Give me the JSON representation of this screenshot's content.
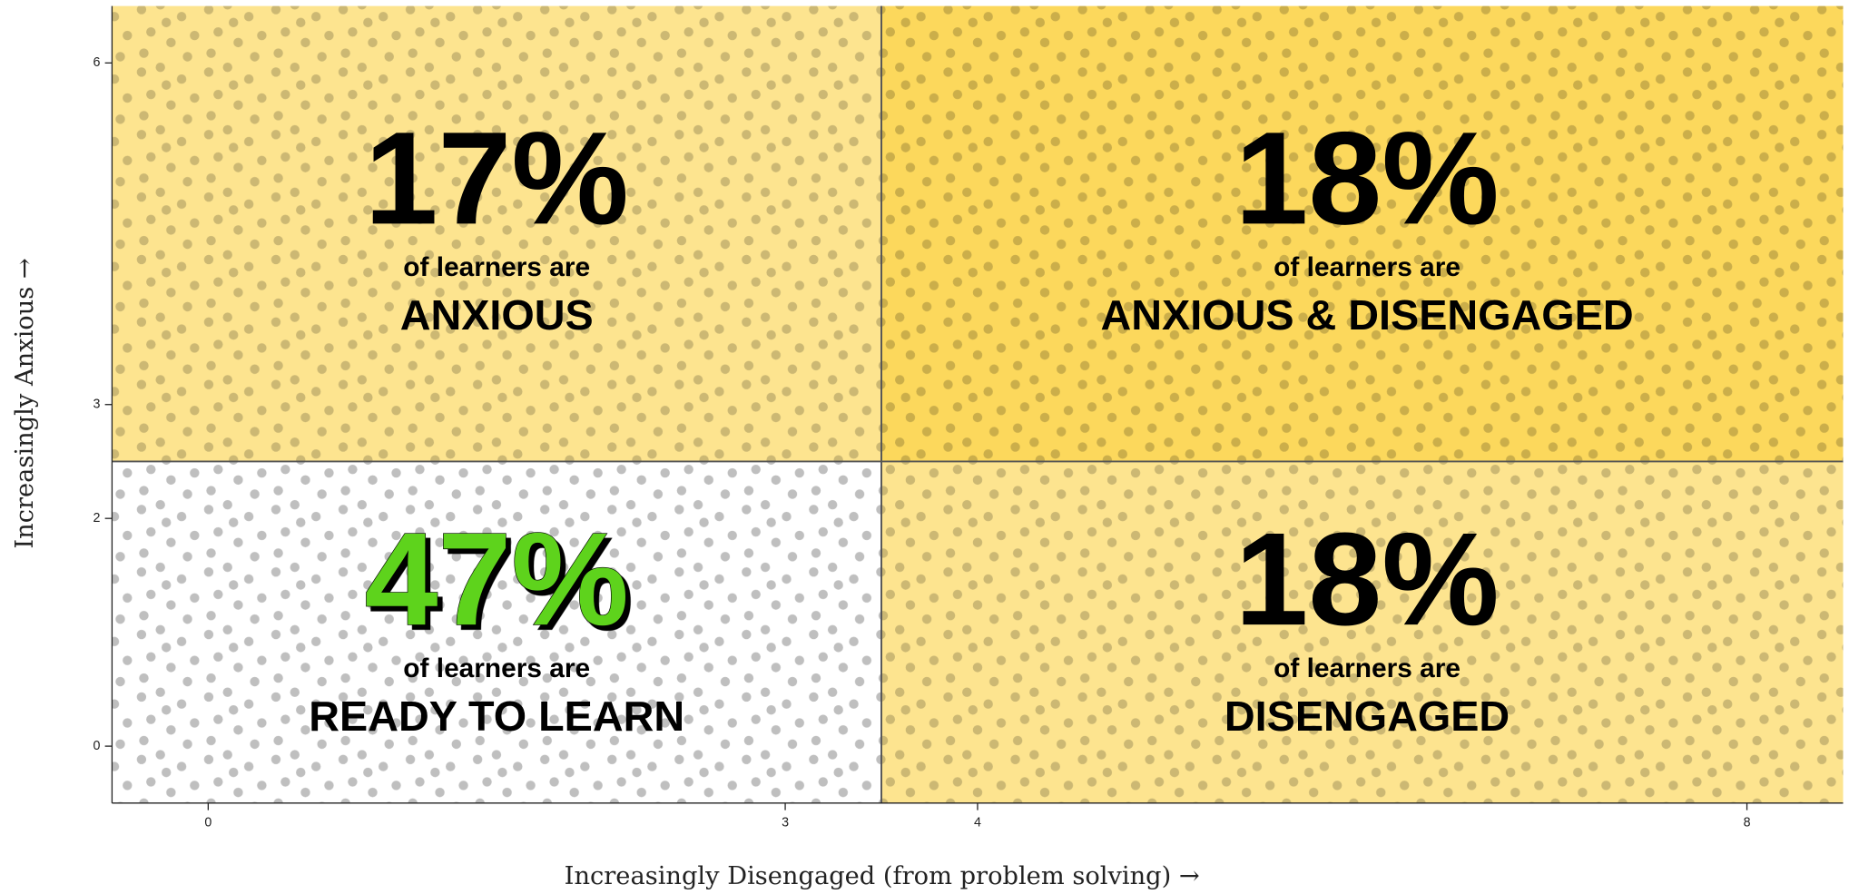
{
  "chart_data": {
    "type": "quadrant",
    "x_label": "Increasingly Disengaged (from problem solving) →",
    "y_label": "Increasingly Anxious →",
    "xlim": [
      -0.5,
      8.5
    ],
    "ylim": [
      -0.5,
      6.5
    ],
    "xticks": [
      0,
      3,
      4,
      8
    ],
    "yticks": [
      0,
      2,
      3,
      6
    ],
    "x_split": 3.5,
    "y_split": 2.5,
    "caption": "of learners are",
    "categories": [
      "ANXIOUS",
      "ANXIOUS & DISENGAGED",
      "READY TO LEARN",
      "DISENGAGED"
    ],
    "values": [
      17,
      18,
      47,
      18
    ],
    "value_labels": [
      "17%",
      "18%",
      "47%",
      "18%"
    ],
    "colors": [
      "#fde48f",
      "#fcd85c",
      "#ffffff",
      "#fde48f"
    ],
    "value_colors": [
      "#000000",
      "#000000",
      "#5ed31c",
      "#000000"
    ]
  }
}
